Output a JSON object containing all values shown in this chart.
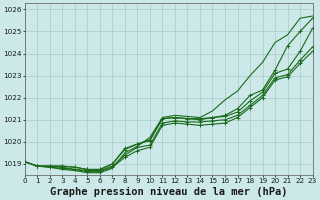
{
  "title": "Graphe pression niveau de la mer (hPa)",
  "background_color": "#cce8e8",
  "grid_color": "#aacccc",
  "line_color": "#1a6b1a",
  "xlim": [
    0,
    23
  ],
  "ylim": [
    1018.5,
    1026.3
  ],
  "yticks": [
    1019,
    1020,
    1021,
    1022,
    1023,
    1024,
    1025,
    1026
  ],
  "xticks": [
    0,
    1,
    2,
    3,
    4,
    5,
    6,
    7,
    8,
    9,
    10,
    11,
    12,
    13,
    14,
    15,
    16,
    17,
    18,
    19,
    20,
    21,
    22,
    23
  ],
  "series": [
    [
      1019.1,
      1018.9,
      1018.9,
      1018.85,
      1018.75,
      1018.7,
      1018.7,
      1018.9,
      1019.4,
      1019.75,
      1019.85,
      1020.85,
      1020.95,
      1020.9,
      1020.9,
      1020.95,
      1021.0,
      1021.2,
      1021.65,
      1022.1,
      1022.9,
      1023.05,
      1023.7,
      1024.3
    ],
    [
      1019.1,
      1018.9,
      1018.9,
      1018.9,
      1018.85,
      1018.75,
      1018.75,
      1019.0,
      1019.7,
      1019.9,
      1020.1,
      1021.05,
      1021.1,
      1021.05,
      1021.05,
      1021.1,
      1021.15,
      1021.35,
      1021.85,
      1022.25,
      1023.1,
      1023.3,
      1024.1,
      1025.15
    ],
    [
      1019.1,
      1018.9,
      1018.9,
      1018.9,
      1018.85,
      1018.75,
      1018.75,
      1019.0,
      1019.65,
      1019.9,
      1020.05,
      1021.05,
      1021.1,
      1021.05,
      1021.0,
      1021.1,
      1021.2,
      1021.5,
      1022.1,
      1022.35,
      1023.25,
      1024.35,
      1025.0,
      1025.6
    ],
    [
      1019.1,
      1018.9,
      1018.85,
      1018.8,
      1018.75,
      1018.65,
      1018.65,
      1018.85,
      1019.3,
      1019.6,
      1019.75,
      1020.75,
      1020.85,
      1020.8,
      1020.75,
      1020.8,
      1020.85,
      1021.1,
      1021.55,
      1022.0,
      1022.8,
      1022.95,
      1023.55,
      1024.1
    ]
  ],
  "series_no_marker": [
    [
      1019.1,
      1018.9,
      1018.85,
      1018.75,
      1018.7,
      1018.6,
      1018.6,
      1018.8,
      1019.5,
      1019.8,
      1020.2,
      1021.1,
      1021.2,
      1021.15,
      1021.1,
      1021.4,
      1021.9,
      1022.3,
      1023.0,
      1023.6,
      1024.5,
      1024.85,
      1025.6,
      1025.7
    ]
  ],
  "marker": "+",
  "markersize": 3.5,
  "linewidth": 0.8,
  "title_fontsize": 7.5,
  "tick_fontsize": 5.2
}
